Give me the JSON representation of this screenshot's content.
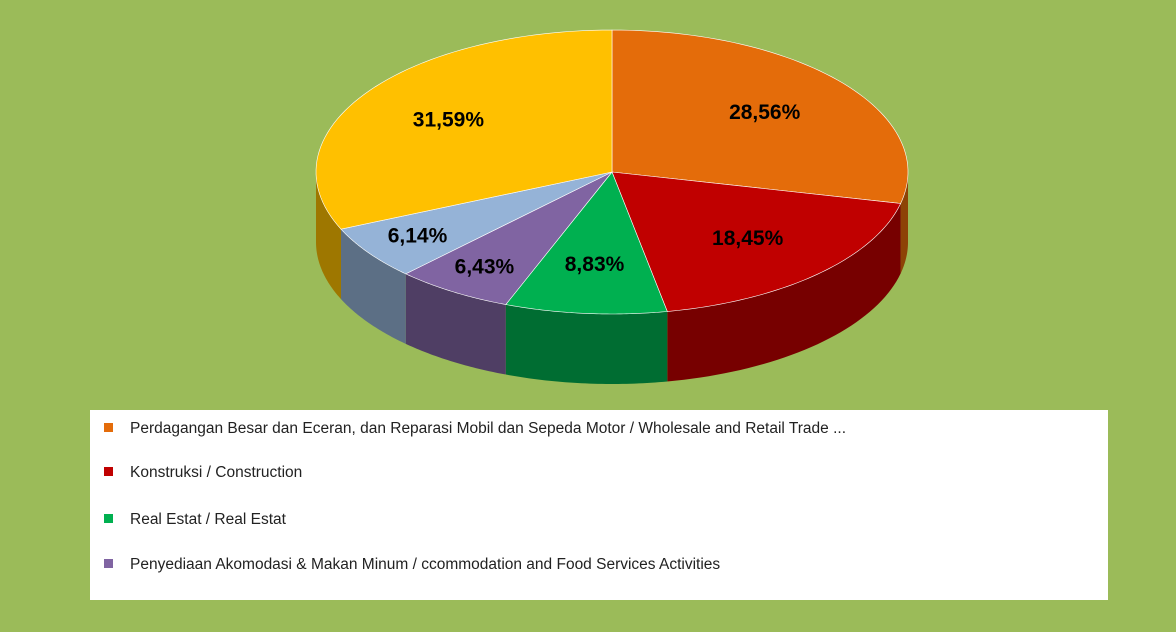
{
  "chart_data": {
    "type": "pie3d",
    "categories": [
      "Perdagangan Besar dan Eceran, dan Reparasi Mobil dan Sepeda Motor  / Wholesale and Retail Trade ...",
      "Konstruksi / Construction",
      "Real Estat / Real Estat",
      "Penyediaan Akomodasi & Makan Minum  / ccommodation and Food Services Activities",
      null,
      null
    ],
    "values": [
      28.56,
      18.45,
      8.83,
      6.43,
      6.14,
      31.59
    ],
    "value_labels": [
      "28,56%",
      "18,45%",
      "8,83%",
      "6,43%",
      "6,14%",
      "31,59%"
    ],
    "colors": [
      "#e46c0a",
      "#c00000",
      "#00b050",
      "#8064a2",
      "#95b3d7",
      "#ffc000"
    ],
    "legend": "bottom"
  }
}
